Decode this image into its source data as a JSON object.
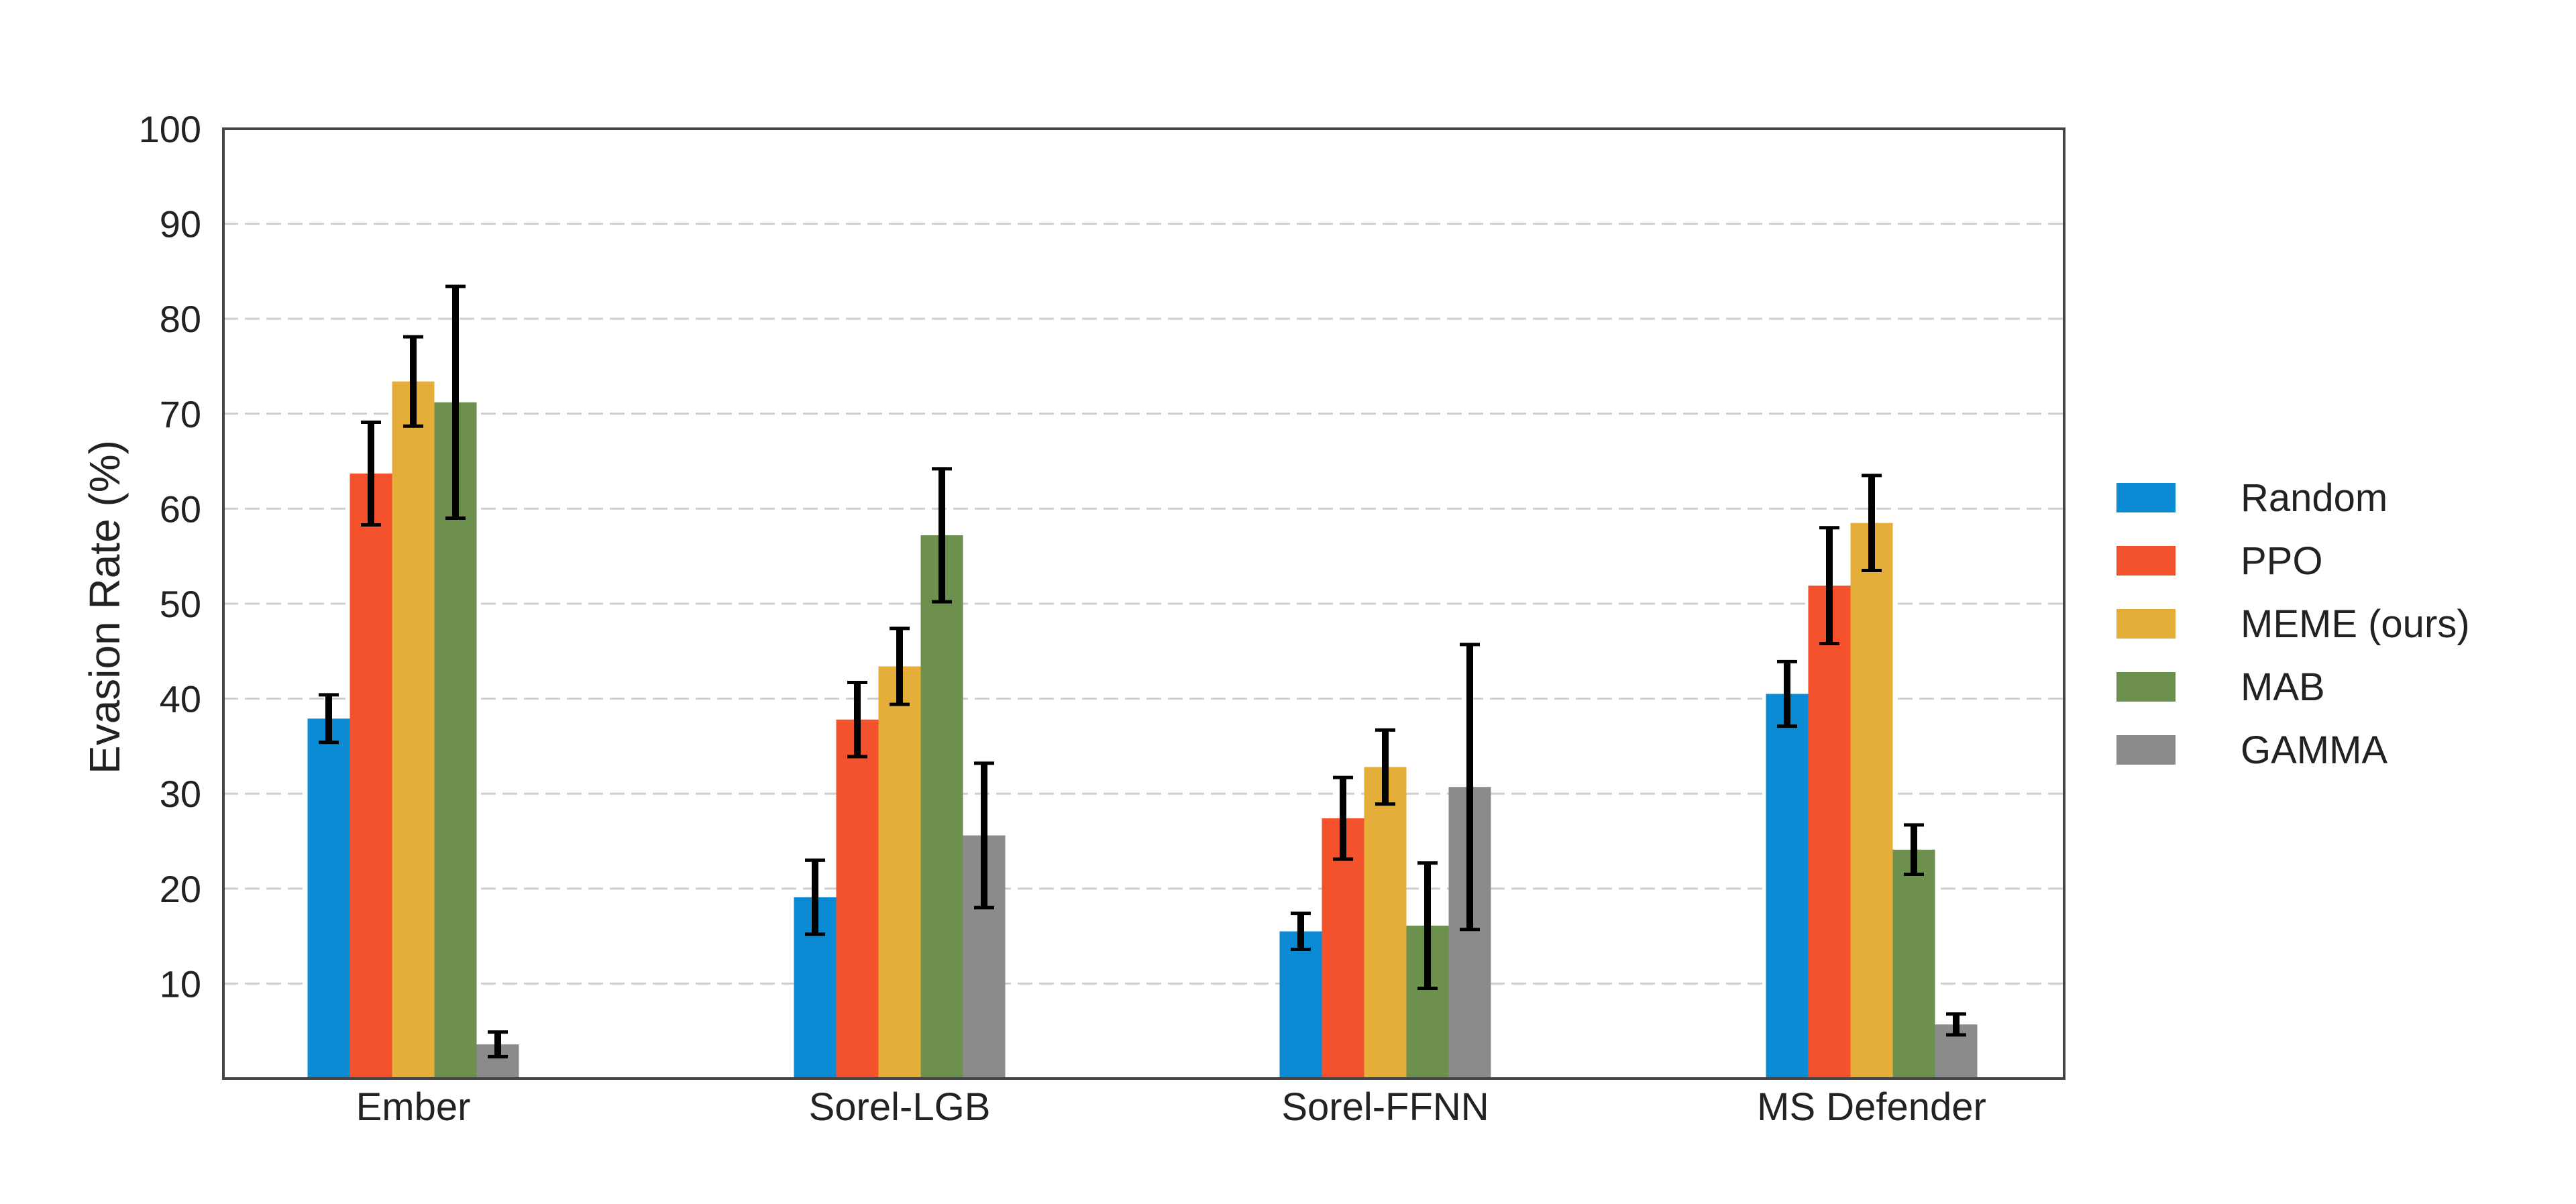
{
  "chart_data": {
    "type": "bar",
    "title": "",
    "xlabel": "",
    "ylabel": "Evasion Rate (%)",
    "ylim": [
      0,
      100
    ],
    "yticks": [
      10,
      20,
      30,
      40,
      50,
      60,
      70,
      80,
      90,
      100
    ],
    "grid": true,
    "legend_position": "right",
    "categories": [
      "Ember",
      "Sorel-LGB",
      "Sorel-FFNN",
      "MS Defender"
    ],
    "series": [
      {
        "name": "Random",
        "color": "#0a8bd4",
        "values": [
          37.9,
          19.1,
          15.5,
          40.5
        ],
        "errors": [
          2.5,
          3.9,
          1.9,
          3.4
        ]
      },
      {
        "name": "PPO",
        "color": "#f4522d",
        "values": [
          63.7,
          37.8,
          27.4,
          51.9
        ],
        "errors": [
          5.4,
          3.9,
          4.3,
          6.1
        ]
      },
      {
        "name": "MEME (ours)",
        "color": "#e5ae38",
        "values": [
          73.4,
          43.4,
          32.8,
          58.5
        ],
        "errors": [
          4.7,
          4.0,
          3.9,
          5.0
        ]
      },
      {
        "name": "MAB",
        "color": "#6d904f",
        "values": [
          71.2,
          57.2,
          16.1,
          24.1
        ],
        "errors": [
          12.2,
          7.0,
          6.6,
          2.6
        ]
      },
      {
        "name": "GAMMA",
        "color": "#8b8b8b",
        "values": [
          3.6,
          25.6,
          30.7,
          5.7
        ],
        "errors": [
          1.3,
          7.6,
          15.0,
          1.1
        ]
      }
    ]
  }
}
